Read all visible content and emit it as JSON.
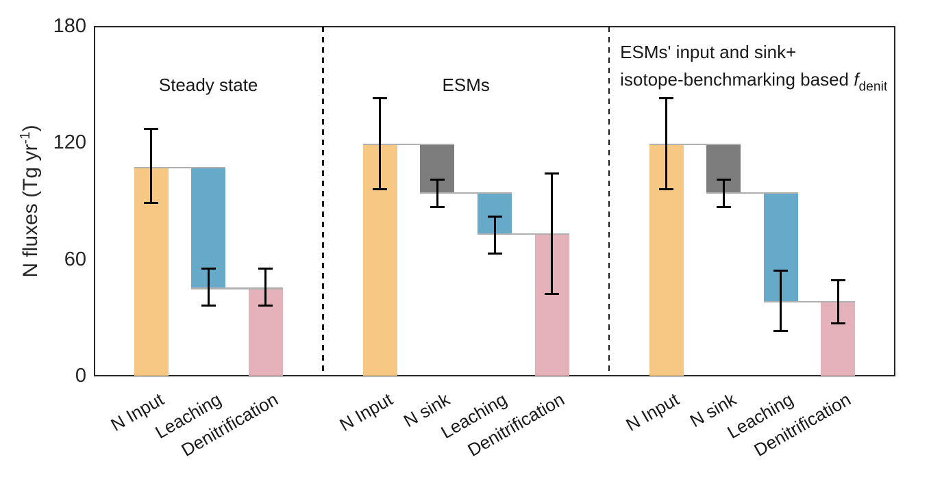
{
  "chart_data": {
    "type": "bar",
    "subtype": "waterfall",
    "ylabel_parts": [
      {
        "t": "N fluxes (Tg yr"
      },
      {
        "t": "-1",
        "s": "sup"
      },
      {
        "t": ")"
      }
    ],
    "ylim": [
      0,
      180
    ],
    "yticks": [
      0,
      60,
      120,
      180
    ],
    "grid": false,
    "legend": "none",
    "colors": {
      "orange": "#F6C883",
      "blue": "#67A9C9",
      "pink": "#E5B2BA",
      "gray": "#7D7D7D",
      "connector": "#B0B0B0",
      "axis": "#262626"
    },
    "panels": [
      {
        "title_lines": [
          [
            {
              "t": "Steady state"
            }
          ]
        ],
        "title_align": "center",
        "bars": [
          {
            "category": "N Input",
            "base": 0,
            "top": 107,
            "color_key": "orange",
            "error": {
              "lo": 89,
              "hi": 127
            }
          },
          {
            "category": "Leaching",
            "base": 45,
            "top": 107,
            "color_key": "blue",
            "error": {
              "lo": 36,
              "hi": 55
            }
          },
          {
            "category": "Denitrification",
            "base": 0,
            "top": 45,
            "color_key": "pink",
            "error": {
              "lo": 36,
              "hi": 55
            }
          }
        ]
      },
      {
        "title_lines": [
          [
            {
              "t": "ESMs"
            }
          ]
        ],
        "title_align": "center",
        "bars": [
          {
            "category": "N Input",
            "base": 0,
            "top": 119,
            "color_key": "orange",
            "error": {
              "lo": 96,
              "hi": 143
            }
          },
          {
            "category": "N sink",
            "base": 94,
            "top": 119,
            "color_key": "gray",
            "error": {
              "lo": 87,
              "hi": 101
            }
          },
          {
            "category": "Leaching",
            "base": 73,
            "top": 94,
            "color_key": "blue",
            "error": {
              "lo": 63,
              "hi": 82
            }
          },
          {
            "category": "Denitrification",
            "base": 0,
            "top": 73,
            "color_key": "pink",
            "error": {
              "lo": 42,
              "hi": 104
            }
          }
        ]
      },
      {
        "title_lines": [
          [
            {
              "t": "ESMs' input and sink+"
            }
          ],
          [
            {
              "t": "isotope-benchmarking based "
            },
            {
              "t": "f",
              "s": "ital"
            },
            {
              "t": "denit",
              "s": "sub"
            }
          ]
        ],
        "title_align": "left",
        "bars": [
          {
            "category": "N Input",
            "base": 0,
            "top": 119,
            "color_key": "orange",
            "error": {
              "lo": 96,
              "hi": 143
            }
          },
          {
            "category": "N sink",
            "base": 94,
            "top": 119,
            "color_key": "gray",
            "error": {
              "lo": 87,
              "hi": 101
            }
          },
          {
            "category": "Leaching",
            "base": 38,
            "top": 94,
            "color_key": "blue",
            "error": {
              "lo": 23,
              "hi": 54
            }
          },
          {
            "category": "Denitrification",
            "base": 0,
            "top": 38,
            "color_key": "pink",
            "error": {
              "lo": 27,
              "hi": 49
            }
          }
        ]
      }
    ]
  }
}
